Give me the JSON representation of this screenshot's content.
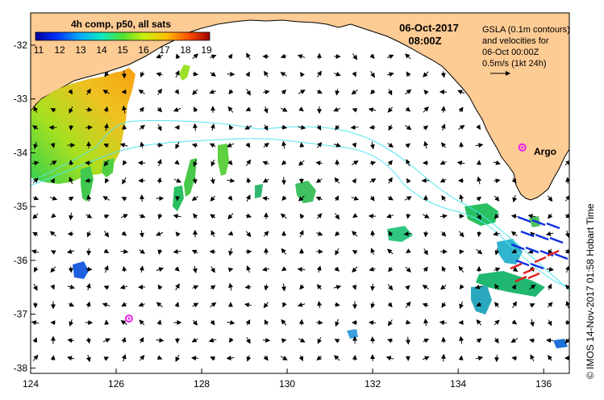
{
  "header": {
    "date": "06-Oct-2017",
    "time": "08:00Z"
  },
  "colorbar": {
    "title": "4h comp, p50, all sats",
    "labels": [
      "11",
      "12",
      "13",
      "14",
      "15",
      "16",
      "17",
      "18",
      "19"
    ],
    "min": 11,
    "max": 19
  },
  "legend_note": {
    "lines": [
      "GSLA (0.1m contours)",
      "and velocities for",
      "06-Oct 00:00Z",
      "0.5m/s (1kt 24h)"
    ]
  },
  "side_credit": "© IMOS 14-Nov-2017 01:58 Hobart Time",
  "argo_label": "Argo",
  "axes": {
    "x_ticks": [
      "124",
      "126",
      "128",
      "130",
      "132",
      "134",
      "136"
    ],
    "y_ticks": [
      "-32",
      "-33",
      "-34",
      "-35",
      "-36",
      "-37",
      "-38"
    ],
    "x_range": [
      124,
      136.6
    ],
    "y_range": [
      -38.1,
      -31.4
    ]
  },
  "colors": {
    "land": "#fdcb94",
    "ocean": "#ffffff",
    "contour": "#4fe6ee",
    "argo": "#ee22ee",
    "arrow": "#000000"
  },
  "argo_floats": [
    {
      "lon": 135.5,
      "lat": -33.9,
      "labeled": true
    },
    {
      "lon": 126.3,
      "lat": -37.08,
      "labeled": false
    }
  ]
}
